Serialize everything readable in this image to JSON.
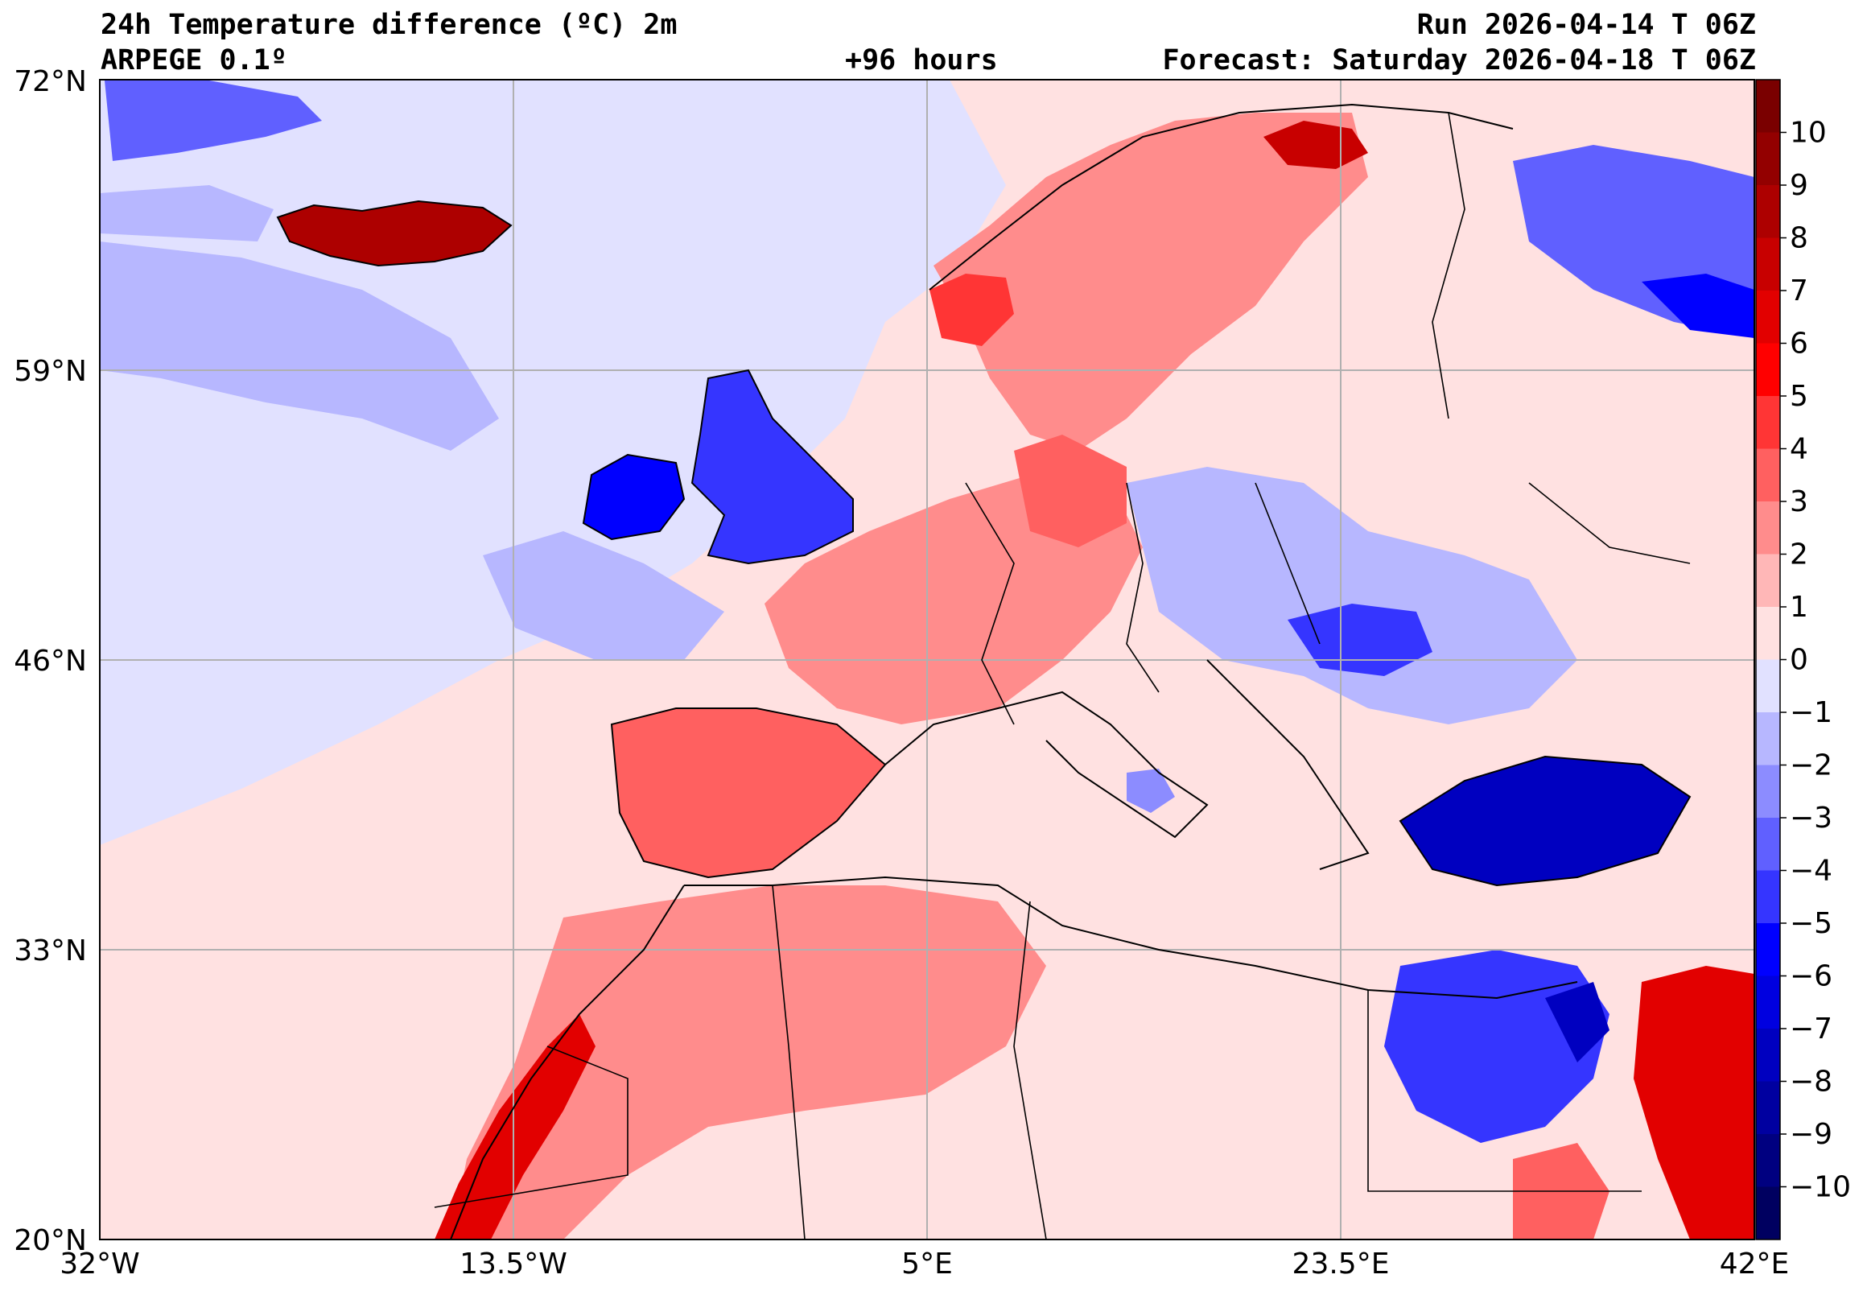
{
  "header": {
    "title": "24h Temperature difference (ºC) 2m",
    "run": "Run 2026-04-14 T 06Z",
    "model": "ARPEGE 0.1º",
    "lead": "+96 hours",
    "forecast": "Forecast: Saturday 2026-04-18 T 06Z"
  },
  "axes": {
    "lat_labels": [
      "72°N",
      "59°N",
      "46°N",
      "33°N",
      "20°N"
    ],
    "lon_labels": [
      "32°W",
      "13.5°W",
      "5°E",
      "23.5°E",
      "42°E"
    ]
  },
  "colorbar": {
    "labels": [
      "10",
      "9",
      "8",
      "7",
      "6",
      "5",
      "4",
      "3",
      "2",
      "1",
      "0",
      "−1",
      "−2",
      "−3",
      "−4",
      "−5",
      "−6",
      "−7",
      "−8",
      "−9",
      "−10"
    ],
    "colors": [
      "#7a0000",
      "#930000",
      "#ad0000",
      "#c80000",
      "#e20000",
      "#ff0000",
      "#ff3535",
      "#ff6060",
      "#ff8c8c",
      "#ffb7b7",
      "#ffe1e1",
      "#e1e1ff",
      "#b7b7ff",
      "#8c8cff",
      "#6060ff",
      "#3535ff",
      "#0000ff",
      "#0000e0",
      "#0000c0",
      "#0000a0",
      "#000080",
      "#000060"
    ]
  },
  "map": {
    "background": "#ffe1e1",
    "grid_color": "#b0b0b0",
    "border_color": "#000000"
  }
}
